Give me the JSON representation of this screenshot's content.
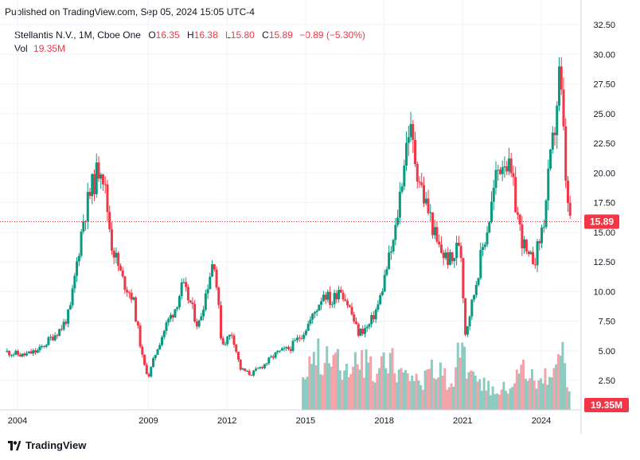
{
  "header": {
    "published": "Published on TradingView.com, Sep 05, 2024 15:05 UTC-4"
  },
  "legend": {
    "symbol": "Stellantis N.V., 1M, Cboe One",
    "o_label": "O",
    "o_value": "16.35",
    "h_label": "H",
    "h_value": "16.38",
    "l_label": "L",
    "l_value": "15.80",
    "c_label": "C",
    "c_value": "15.89",
    "change": "−0.89 (−5.30%)",
    "vol_label": "Vol",
    "vol_value": "19.35M"
  },
  "brand": {
    "name": "TradingView",
    "logo_icon": "tradingview-logo-icon"
  },
  "colors": {
    "up": "#089981",
    "down": "#f23645",
    "vol_up": "#8ccbc2",
    "vol_down": "#f4a4a9",
    "price_line": "#f23645",
    "grid": "#f0f3fa"
  },
  "chart_data": {
    "type": "candlestick",
    "title": "Stellantis N.V., 1M, Cboe One",
    "y_ticks": [
      "32.50",
      "30.00",
      "27.50",
      "25.00",
      "22.50",
      "20.00",
      "17.50",
      "15.00",
      "12.50",
      "10.00",
      "7.50",
      "5.00",
      "2.50"
    ],
    "x_ticks": [
      "2004",
      "2009",
      "2012",
      "2015",
      "2018",
      "2021",
      "2024"
    ],
    "ylim": [
      0,
      33.5
    ],
    "xlim": [
      2003.5,
      2024.9
    ],
    "grid": true,
    "last_price_label": "15.89",
    "last_volume_label": "19.35M",
    "price_series": [
      [
        2003.6,
        4.9
      ],
      [
        2004.2,
        4.6
      ],
      [
        2004.8,
        5.0
      ],
      [
        2005.2,
        5.9
      ],
      [
        2005.7,
        7.0
      ],
      [
        2006.0,
        8.3
      ],
      [
        2006.5,
        16.0
      ],
      [
        2006.8,
        18.5
      ],
      [
        2007.2,
        21.0
      ],
      [
        2007.6,
        14.0
      ],
      [
        2008.0,
        11.0
      ],
      [
        2008.4,
        9.5
      ],
      [
        2008.8,
        4.0
      ],
      [
        2009.0,
        2.8
      ],
      [
        2009.3,
        5.0
      ],
      [
        2009.7,
        7.3
      ],
      [
        2010.0,
        8.5
      ],
      [
        2010.3,
        10.5
      ],
      [
        2010.6,
        9.0
      ],
      [
        2010.9,
        7.0
      ],
      [
        2011.2,
        10.0
      ],
      [
        2011.5,
        13.0
      ],
      [
        2011.8,
        5.5
      ],
      [
        2012.2,
        6.5
      ],
      [
        2012.5,
        3.5
      ],
      [
        2012.9,
        3.0
      ],
      [
        2013.4,
        3.8
      ],
      [
        2013.9,
        4.8
      ],
      [
        2014.4,
        5.2
      ],
      [
        2014.9,
        6.5
      ],
      [
        2015.3,
        8.0
      ],
      [
        2015.7,
        10.0
      ],
      [
        2016.0,
        9.0
      ],
      [
        2016.3,
        10.5
      ],
      [
        2016.7,
        8.5
      ],
      [
        2017.0,
        6.5
      ],
      [
        2017.4,
        7.0
      ],
      [
        2017.8,
        9.0
      ],
      [
        2018.1,
        12.0
      ],
      [
        2018.4,
        14.5
      ],
      [
        2018.7,
        20.0
      ],
      [
        2018.95,
        24.0
      ],
      [
        2019.2,
        21.0
      ],
      [
        2019.5,
        18.0
      ],
      [
        2019.8,
        16.0
      ],
      [
        2020.0,
        14.0
      ],
      [
        2020.3,
        13.0
      ],
      [
        2020.6,
        12.5
      ],
      [
        2020.9,
        14.5
      ],
      [
        2021.1,
        6.5
      ],
      [
        2021.4,
        9.5
      ],
      [
        2021.7,
        13.0
      ],
      [
        2022.0,
        16.0
      ],
      [
        2022.3,
        20.0
      ],
      [
        2022.6,
        21.5
      ],
      [
        2022.9,
        19.0
      ],
      [
        2023.2,
        15.0
      ],
      [
        2023.5,
        12.5
      ],
      [
        2023.8,
        13.0
      ],
      [
        2024.1,
        16.0
      ],
      [
        2024.3,
        20.0
      ],
      [
        2024.5,
        23.5
      ],
      [
        2024.7,
        28.5
      ],
      [
        2024.8,
        25.0
      ],
      [
        2024.9,
        21.0
      ],
      [
        2025.0,
        17.0
      ],
      [
        2025.1,
        16.4
      ]
    ],
    "volume_series": [
      [
        2014.9,
        1.3
      ],
      [
        2015.2,
        2.8
      ],
      [
        2015.5,
        3.0
      ],
      [
        2015.8,
        2.6
      ],
      [
        2016.1,
        2.9
      ],
      [
        2016.4,
        2.4
      ],
      [
        2016.7,
        2.7
      ],
      [
        2017.0,
        2.2
      ],
      [
        2017.3,
        2.5
      ],
      [
        2017.6,
        2.0
      ],
      [
        2017.9,
        2.3
      ],
      [
        2018.2,
        2.9
      ],
      [
        2018.5,
        2.2
      ],
      [
        2018.8,
        2.0
      ],
      [
        2019.1,
        1.9
      ],
      [
        2019.4,
        1.6
      ],
      [
        2019.7,
        1.8
      ],
      [
        2020.0,
        2.3
      ],
      [
        2020.3,
        1.7
      ],
      [
        2020.6,
        1.5
      ],
      [
        2020.9,
        3.1
      ],
      [
        2021.2,
        2.0
      ],
      [
        2021.5,
        1.4
      ],
      [
        2021.8,
        1.3
      ],
      [
        2022.1,
        1.2
      ],
      [
        2022.4,
        1.1
      ],
      [
        2022.7,
        1.3
      ],
      [
        2023.0,
        1.7
      ],
      [
        2023.3,
        2.5
      ],
      [
        2023.6,
        1.9
      ],
      [
        2023.9,
        1.5
      ],
      [
        2024.2,
        1.7
      ],
      [
        2024.5,
        2.5
      ],
      [
        2024.8,
        2.8
      ],
      [
        2025.1,
        1.0
      ]
    ]
  }
}
